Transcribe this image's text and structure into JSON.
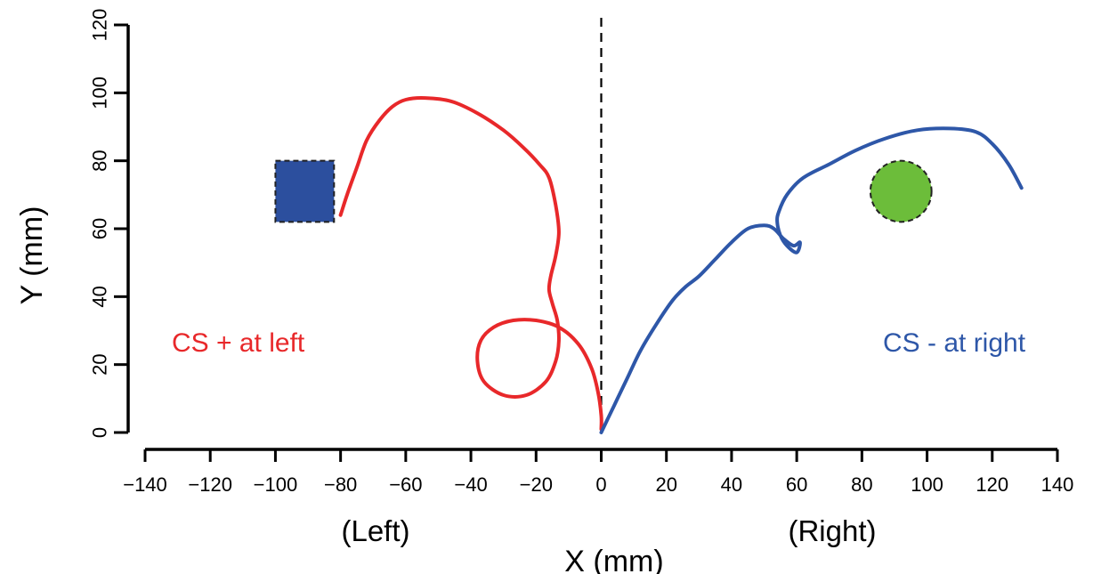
{
  "chart_data": {
    "type": "line",
    "xlabel": "X (mm)",
    "ylabel": "Y (mm)",
    "xlim": [
      -140,
      140
    ],
    "ylim": [
      0,
      120
    ],
    "x_ticks": [
      -140,
      -120,
      -100,
      -80,
      -60,
      -40,
      -20,
      0,
      20,
      40,
      60,
      80,
      100,
      120,
      140
    ],
    "x_tick_labels": [
      "−140",
      "−120",
      "−100",
      "−80",
      "−60",
      "−40",
      "−20",
      "0",
      "20",
      "40",
      "60",
      "80",
      "100",
      "120",
      "140"
    ],
    "y_ticks": [
      0,
      20,
      40,
      60,
      80,
      100,
      120
    ],
    "y_tick_labels": [
      "0",
      "20",
      "40",
      "60",
      "80",
      "100",
      "120"
    ],
    "grid": false,
    "reference_line": {
      "x": 0,
      "style": "dashed"
    },
    "region_labels": {
      "left": "(Left)",
      "right": "(Right)"
    },
    "annotations": [
      {
        "text": "CS + at left",
        "color": "#e8282a"
      },
      {
        "text": "CS - at right",
        "color": "#2e57a8"
      }
    ],
    "stimuli": [
      {
        "shape": "square",
        "color": "#2c4f9e",
        "x_range": [
          -100,
          -82
        ],
        "y_range": [
          62,
          80
        ]
      },
      {
        "shape": "circle",
        "color": "#6cbd3a",
        "cx": 92,
        "cy": 71,
        "r": 9
      }
    ],
    "series": [
      {
        "color": "#e8282a",
        "x": [
          0,
          0,
          -1,
          -3,
          -7,
          -13,
          -20,
          -27,
          -33,
          -37,
          -38,
          -36,
          -30,
          -23,
          -17,
          -14,
          -13,
          -13.5,
          -15,
          -16,
          -15.5,
          -14,
          -13,
          -14,
          -16,
          -19,
          -24,
          -30,
          -38,
          -46,
          -54,
          -60,
          -64,
          -68,
          -72,
          -75,
          -78,
          -80
        ],
        "y": [
          1,
          5,
          12,
          19,
          26,
          31,
          33,
          33,
          31,
          27,
          21,
          15,
          11,
          11,
          15,
          21,
          27,
          33,
          38,
          42,
          46,
          52,
          59,
          67,
          75,
          79,
          84,
          89,
          94,
          97.5,
          98.5,
          98,
          96,
          92,
          86,
          78,
          70,
          64
        ]
      },
      {
        "color": "#2e57a8",
        "x": [
          0,
          2,
          5,
          8,
          12,
          17,
          22,
          26,
          30,
          35,
          40,
          45,
          50,
          53,
          56,
          59,
          61,
          60,
          57,
          55,
          54,
          54.5,
          57,
          62,
          70,
          78,
          87,
          97,
          107,
          115,
          120,
          125,
          129
        ],
        "y": [
          0,
          4,
          10,
          16,
          24,
          32,
          39,
          43,
          46,
          51,
          56,
          60,
          61,
          60,
          57,
          55,
          56,
          53,
          55,
          58,
          62,
          65,
          70,
          75,
          79,
          83,
          86.5,
          89,
          89.5,
          88.5,
          85,
          79,
          72
        ]
      }
    ]
  }
}
